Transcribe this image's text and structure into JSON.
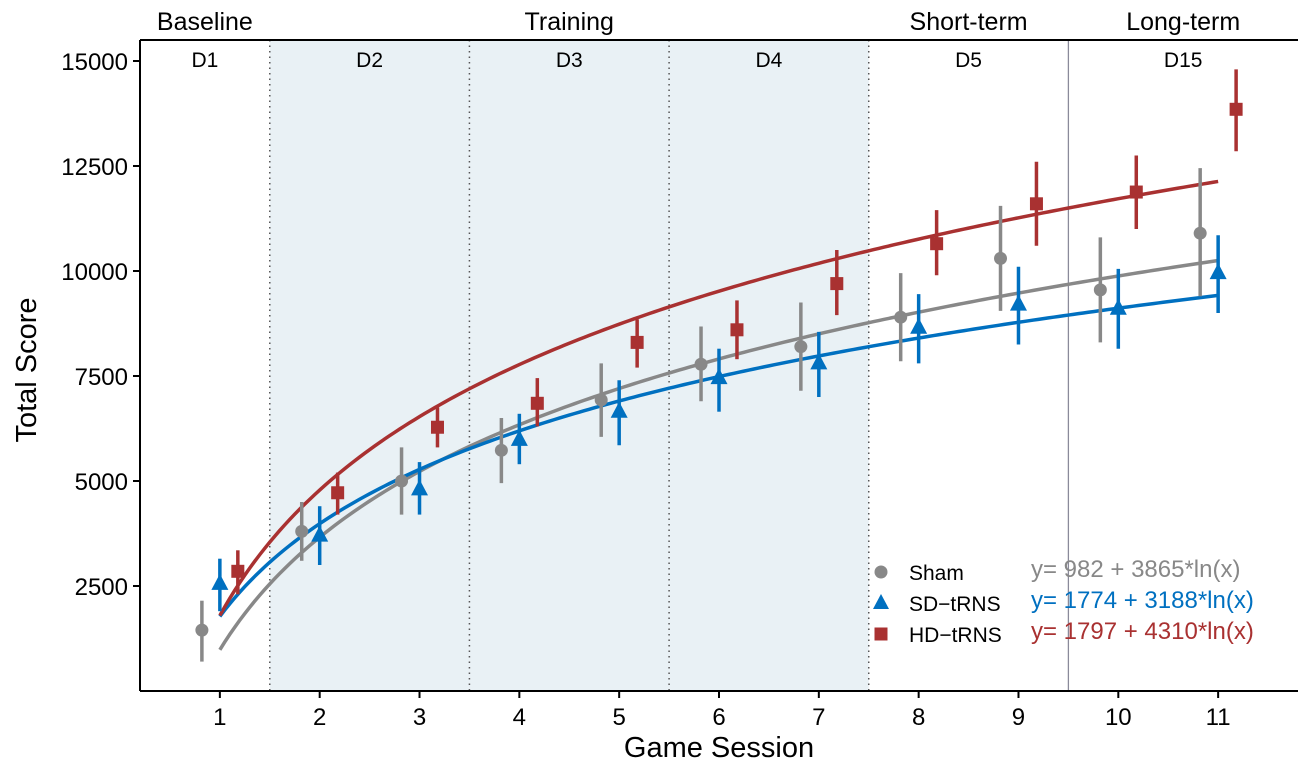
{
  "chart_data": {
    "type": "scatter",
    "xlabel": "Game Session",
    "ylabel": "Total Score",
    "xlim": [
      0.2,
      11.8
    ],
    "ylim": [
      0,
      15500
    ],
    "x_ticks": [
      1,
      2,
      3,
      4,
      5,
      6,
      7,
      8,
      9,
      10,
      11
    ],
    "y_ticks": [
      2500,
      5000,
      7500,
      10000,
      12500,
      15000
    ],
    "grid": false,
    "legend_position": "bottom-right",
    "phases": [
      {
        "label": "Baseline",
        "from": 0.2,
        "to": 1.5
      },
      {
        "label": "Training",
        "from": 1.5,
        "to": 7.5
      },
      {
        "label": "Short-term",
        "from": 7.5,
        "to": 9.5
      },
      {
        "label": "Long-term",
        "from": 9.5,
        "to": 11.8
      }
    ],
    "days": [
      {
        "label": "D1",
        "from": 0.2,
        "to": 1.5,
        "shaded": false
      },
      {
        "label": "D2",
        "from": 1.5,
        "to": 3.5,
        "shaded": true
      },
      {
        "label": "D3",
        "from": 3.5,
        "to": 5.5,
        "shaded": true
      },
      {
        "label": "D4",
        "from": 5.5,
        "to": 7.5,
        "shaded": true
      },
      {
        "label": "D5",
        "from": 7.5,
        "to": 9.5,
        "shaded": false
      },
      {
        "label": "D15",
        "from": 9.5,
        "to": 11.8,
        "shaded": false
      }
    ],
    "dotted_lines": [
      1.5,
      3.5,
      5.5,
      7.5
    ],
    "solid_lines": [
      9.5
    ],
    "shade_color": "#e9f1f5",
    "series": [
      {
        "name": "Sham",
        "color": "#888888",
        "marker": "circle",
        "offset": -0.18,
        "x": [
          1,
          2,
          3,
          4,
          5,
          6,
          7,
          8,
          9,
          10,
          11
        ],
        "y": [
          1450,
          3800,
          5000,
          5730,
          6930,
          7780,
          8200,
          8900,
          10300,
          9550,
          10900
        ],
        "error_low": [
          700,
          3100,
          4200,
          4950,
          6050,
          6900,
          7150,
          7850,
          9050,
          8300,
          9400
        ],
        "error_high": [
          2150,
          4500,
          5800,
          6500,
          7800,
          8680,
          9250,
          9950,
          11550,
          10800,
          12450
        ],
        "fit_label": "y= 982 + 3865*ln(x)",
        "fit_a": 982,
        "fit_b": 3865
      },
      {
        "name": "SD−tRNS",
        "color": "#0070c0",
        "marker": "triangle",
        "offset": 0,
        "x": [
          1,
          2,
          3,
          4,
          5,
          6,
          7,
          8,
          9,
          10,
          11
        ],
        "y": [
          2550,
          3700,
          4800,
          5980,
          6650,
          7450,
          7800,
          8650,
          9200,
          9100,
          9950
        ],
        "error_low": [
          1900,
          3000,
          4200,
          5400,
          5850,
          6650,
          7000,
          7800,
          8250,
          8150,
          9000
        ],
        "error_high": [
          3150,
          4400,
          5450,
          6600,
          7400,
          8150,
          8550,
          9450,
          10100,
          10050,
          10850
        ],
        "fit_label": "y= 1774 + 3188*ln(x)",
        "fit_a": 1774,
        "fit_b": 3188
      },
      {
        "name": "HD−tRNS",
        "color": "#a93131",
        "marker": "square",
        "offset": 0.18,
        "x": [
          1,
          2,
          3,
          4,
          5,
          6,
          7,
          8,
          9,
          10,
          11
        ],
        "y": [
          2850,
          4720,
          6280,
          6850,
          8300,
          8600,
          9700,
          10650,
          11600,
          11880,
          13850
        ],
        "error_low": [
          2300,
          4200,
          5800,
          6300,
          7700,
          7900,
          8950,
          9900,
          10600,
          11000,
          12850
        ],
        "error_high": [
          3350,
          5200,
          6750,
          7450,
          8850,
          9300,
          10500,
          11450,
          12600,
          12750,
          14800
        ],
        "fit_label": "y= 1797 + 4310*ln(x)",
        "fit_a": 1797,
        "fit_b": 4310
      }
    ]
  }
}
